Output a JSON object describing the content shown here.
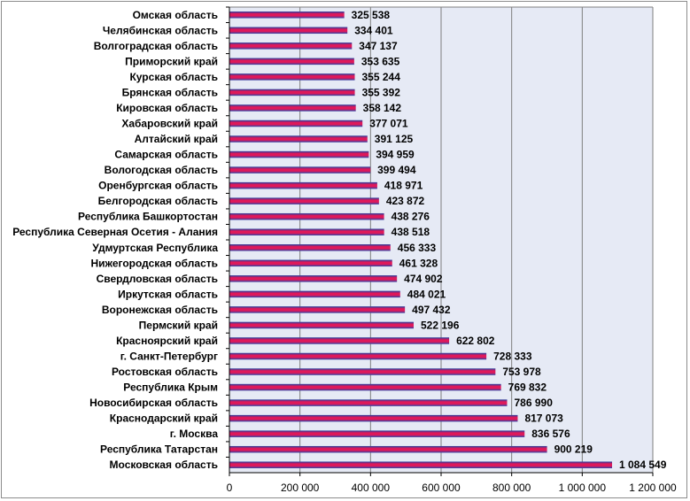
{
  "chart_data": {
    "type": "bar",
    "orientation": "horizontal",
    "categories": [
      "Омская область",
      "Челябинская область",
      "Волгоградская область",
      "Приморский край",
      "Курская область",
      "Брянская область",
      "Кировская область",
      "Хабаровский край",
      "Алтайский край",
      "Самарская область",
      "Вологодская область",
      "Оренбургская область",
      "Белгородская область",
      "Республика Башкортостан",
      "Республика Северная Осетия - Алания",
      "Удмуртская Республика",
      "Нижегородская область",
      "Свердловская область",
      "Иркутская область",
      "Воронежская область",
      "Пермский край",
      "Красноярский край",
      "г. Санкт-Петербург",
      "Ростовская область",
      "Республика Крым",
      "Новосибирская область",
      "Краснодарский край",
      "г. Москва",
      "Республика Татарстан",
      "Московская область"
    ],
    "values": [
      325538,
      334401,
      347137,
      353635,
      355244,
      355392,
      358142,
      377071,
      391125,
      394959,
      399494,
      418971,
      423872,
      438276,
      438518,
      456333,
      461328,
      474902,
      484021,
      497432,
      522196,
      622802,
      728333,
      753978,
      769832,
      786990,
      817073,
      836576,
      900219,
      1084549
    ],
    "value_labels": [
      "325 538",
      "334 401",
      "347 137",
      "353 635",
      "355 244",
      "355 392",
      "358 142",
      "377 071",
      "391 125",
      "394 959",
      "399 494",
      "418 971",
      "423 872",
      "438 276",
      "438 518",
      "456 333",
      "461 328",
      "474 902",
      "484 021",
      "497 432",
      "522 196",
      "622 802",
      "728 333",
      "753 978",
      "769 832",
      "786 990",
      "817 073",
      "836 576",
      "900 219",
      "1 084 549"
    ],
    "xlim": [
      0,
      1200000
    ],
    "x_ticks": [
      0,
      200000,
      400000,
      600000,
      800000,
      1000000,
      1200000
    ],
    "x_tick_labels": [
      "0",
      "200 000",
      "400 000",
      "600 000",
      "800 000",
      "1 000 000",
      "1 200 000"
    ],
    "grid": true,
    "legend": "none",
    "colors": {
      "bar_top": "#1f3fa0",
      "bar_middle": "#e0185a",
      "bar_bottom": "#2a44a8",
      "plot_background": "#e6eaf5",
      "grid": "#7f7f7f",
      "frame": "#8c8c8c"
    }
  }
}
